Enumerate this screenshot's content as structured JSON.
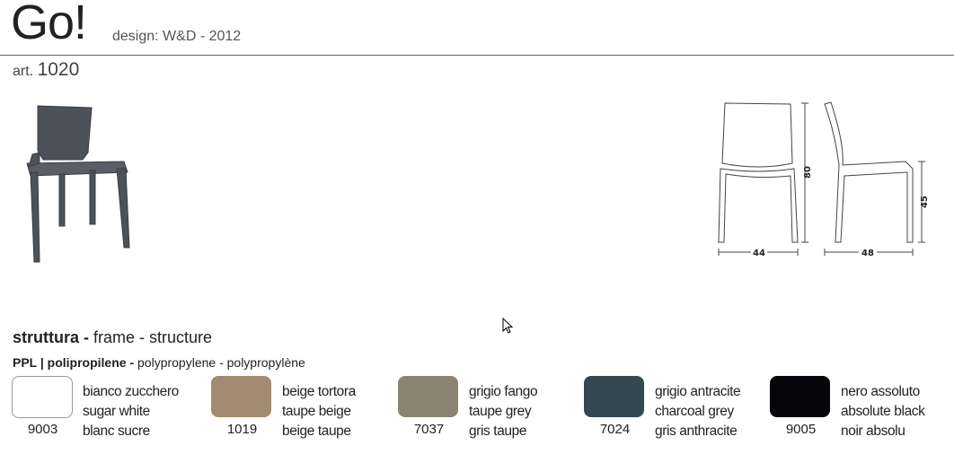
{
  "header": {
    "title": "Go!",
    "designer": "design: W&D - 2012",
    "art_label": "art.",
    "art_number": "1020"
  },
  "dimensions": {
    "width": "44",
    "depth": "48",
    "height": "80",
    "seat_height": "45"
  },
  "structure": {
    "title_bold": "struttura -",
    "title_rest": " frame - structure",
    "material_bold": "PPL | polipropilene -",
    "material_rest": " polypropylene - polypropylène"
  },
  "colors": [
    {
      "code": "9003",
      "it": "bianco zucchero",
      "en": "sugar white",
      "fr": "blanc sucre",
      "hex": "#ffffff"
    },
    {
      "code": "1019",
      "it": "beige tortora",
      "en": "taupe beige",
      "fr": "beige taupe",
      "hex": "#a28b70"
    },
    {
      "code": "7037",
      "it": "grigio fango",
      "en": "taupe grey",
      "fr": "gris taupe",
      "hex": "#8b8472"
    },
    {
      "code": "7024",
      "it": "grigio antracite",
      "en": "charcoal grey",
      "fr": "gris anthracite",
      "hex": "#344851"
    },
    {
      "code": "9005",
      "it": "nero assoluto",
      "en": "absolute black",
      "fr": "noir absolu",
      "hex": "#06060a"
    }
  ]
}
